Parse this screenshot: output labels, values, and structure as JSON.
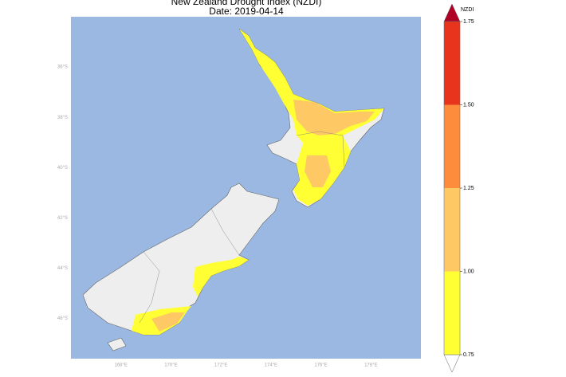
{
  "title": "New Zealand Drought Index (NZDI)",
  "subtitle": "Date: 2019-04-14",
  "map": {
    "lonlim": [
      166,
      180
    ],
    "latlim": [
      -47.6,
      -34
    ],
    "lat_ticks": [
      {
        "value": -36,
        "label": "36°S"
      },
      {
        "value": -38,
        "label": "38°S"
      },
      {
        "value": -40,
        "label": "40°S"
      },
      {
        "value": -42,
        "label": "42°S"
      },
      {
        "value": -44,
        "label": "44°S"
      },
      {
        "value": -46,
        "label": "46°S"
      }
    ],
    "lon_ticks": [
      {
        "value": 168,
        "label": "168°E"
      },
      {
        "value": 170,
        "label": "170°E"
      },
      {
        "value": 172,
        "label": "172°E"
      },
      {
        "value": 174,
        "label": "174°E"
      },
      {
        "value": 176,
        "label": "176°E"
      },
      {
        "value": 178,
        "label": "178°E"
      }
    ]
  },
  "colorbar": {
    "label": "NZDI",
    "ticks": [
      {
        "value": 0.75,
        "label": "0.75"
      },
      {
        "value": 1.0,
        "label": "1.00"
      },
      {
        "value": 1.25,
        "label": "1.25"
      },
      {
        "value": 1.5,
        "label": "1.50"
      },
      {
        "value": 1.75,
        "label": "1.75"
      }
    ],
    "colors": [
      "#ffff33",
      "#fec965",
      "#fd8d3c",
      "#e8341c"
    ],
    "over_color": "#b10026",
    "under_color": "#ffffff"
  }
}
